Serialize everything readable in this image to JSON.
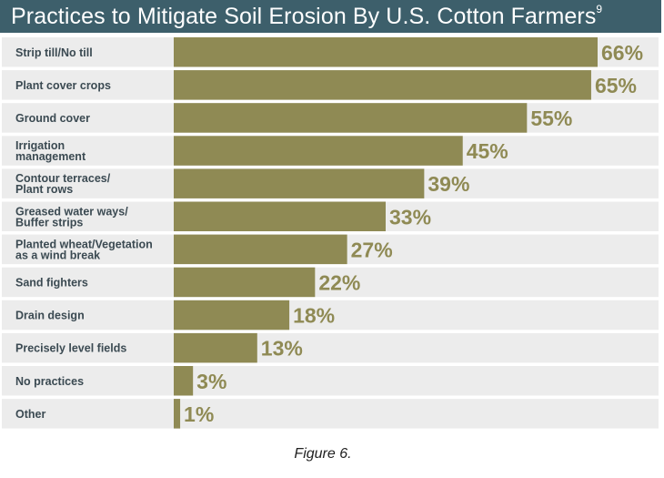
{
  "chart_data": {
    "type": "bar",
    "orientation": "horizontal",
    "title": "Practices to Mitigate Soil Erosion By U.S. Cotton Farmers",
    "title_superscript": "9",
    "categories": [
      [
        "Strip till/No till"
      ],
      [
        "Plant cover crops"
      ],
      [
        "Ground cover"
      ],
      [
        "Irrigation",
        "management"
      ],
      [
        "Contour terraces/",
        "Plant rows"
      ],
      [
        "Greased water ways/",
        "Buffer strips"
      ],
      [
        "Planted wheat/Vegetation",
        "as a wind break"
      ],
      [
        "Sand fighters"
      ],
      [
        "Drain design"
      ],
      [
        "Precisely level fields"
      ],
      [
        "No practices"
      ],
      [
        "Other"
      ]
    ],
    "values": [
      66,
      65,
      55,
      45,
      39,
      33,
      27,
      22,
      18,
      13,
      3,
      1
    ],
    "value_labels": [
      "66%",
      "65%",
      "55%",
      "45%",
      "39%",
      "33%",
      "27%",
      "22%",
      "18%",
      "13%",
      "3%",
      "1%"
    ],
    "xlim": [
      0,
      66
    ],
    "unit": "%",
    "bar_color": "#8f8a54",
    "row_color": "#ececec",
    "label_color": "#3b4a52",
    "value_color": "#8f8a54"
  },
  "caption": "Figure 6.",
  "header_color": "#3d5f6b"
}
